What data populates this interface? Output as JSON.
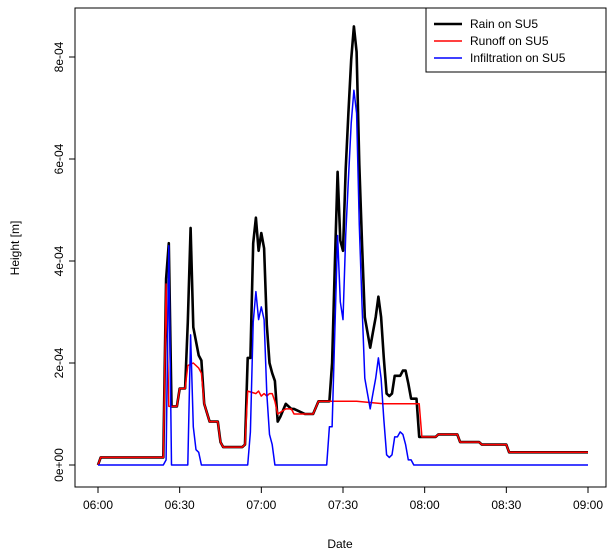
{
  "chart_data": {
    "type": "line",
    "xlabel": "Date",
    "ylabel": "Height [m]",
    "x_ticks": [
      "06:00",
      "06:30",
      "07:00",
      "07:30",
      "08:00",
      "08:30",
      "09:00"
    ],
    "y_ticks": [
      "0e+00",
      "2e-04",
      "4e-04",
      "6e-04",
      "8e-04"
    ],
    "xlim": [
      "06:00",
      "09:00"
    ],
    "ylim": [
      0,
      0.00087
    ],
    "legend_position": "top-right",
    "series": [
      {
        "name": "Rain on SU5",
        "color": "#000000",
        "points": [
          [
            "06:00",
            0.0
          ],
          [
            "06:01",
            1.5e-05
          ],
          [
            "06:24",
            1.5e-05
          ],
          [
            "06:25",
            0.000365
          ],
          [
            "06:26",
            0.000435
          ],
          [
            "06:27",
            0.000115
          ],
          [
            "06:29",
            0.000115
          ],
          [
            "06:30",
            0.00015
          ],
          [
            "06:32",
            0.00015
          ],
          [
            "06:33",
            0.00028
          ],
          [
            "06:34",
            0.000465
          ],
          [
            "06:35",
            0.00027
          ],
          [
            "06:37",
            0.000215
          ],
          [
            "06:38",
            0.000205
          ],
          [
            "06:39",
            0.00012
          ],
          [
            "06:41",
            8.5e-05
          ],
          [
            "06:44",
            8.5e-05
          ],
          [
            "06:45",
            4.5e-05
          ],
          [
            "06:46",
            3.5e-05
          ],
          [
            "06:53",
            3.5e-05
          ],
          [
            "06:54",
            4e-05
          ],
          [
            "06:55",
            0.00021
          ],
          [
            "06:56",
            0.00021
          ],
          [
            "06:57",
            0.000435
          ],
          [
            "06:58",
            0.000485
          ],
          [
            "06:59",
            0.00042
          ],
          [
            "07:00",
            0.000455
          ],
          [
            "07:01",
            0.000425
          ],
          [
            "07:02",
            0.000275
          ],
          [
            "07:03",
            0.0002
          ],
          [
            "07:04",
            0.00018
          ],
          [
            "07:05",
            0.000165
          ],
          [
            "07:06",
            8.5e-05
          ],
          [
            "07:07",
            9.5e-05
          ],
          [
            "07:09",
            0.00012
          ],
          [
            "07:11",
            0.00011
          ],
          [
            "07:12",
            0.00011
          ],
          [
            "07:16",
            0.0001
          ],
          [
            "07:19",
            0.0001
          ],
          [
            "07:21",
            0.000125
          ],
          [
            "07:25",
            0.000125
          ],
          [
            "07:26",
            0.0002
          ],
          [
            "07:27",
            0.00039
          ],
          [
            "07:28",
            0.000575
          ],
          [
            "07:29",
            0.00044
          ],
          [
            "07:30",
            0.00042
          ],
          [
            "07:31",
            0.00058
          ],
          [
            "07:32",
            0.00069
          ],
          [
            "07:33",
            0.000795
          ],
          [
            "07:34",
            0.00086
          ],
          [
            "07:35",
            0.00081
          ],
          [
            "07:36",
            0.00059
          ],
          [
            "07:37",
            0.00043
          ],
          [
            "07:38",
            0.00029
          ],
          [
            "07:39",
            0.00026
          ],
          [
            "07:40",
            0.00023
          ],
          [
            "07:41",
            0.00026
          ],
          [
            "07:42",
            0.00029
          ],
          [
            "07:43",
            0.00033
          ],
          [
            "07:44",
            0.00029
          ],
          [
            "07:45",
            0.00021
          ],
          [
            "07:46",
            0.00014
          ],
          [
            "07:47",
            0.000135
          ],
          [
            "07:48",
            0.00014
          ],
          [
            "07:49",
            0.000175
          ],
          [
            "07:51",
            0.000175
          ],
          [
            "07:52",
            0.000185
          ],
          [
            "07:53",
            0.000185
          ],
          [
            "07:54",
            0.00016
          ],
          [
            "07:55",
            0.00013
          ],
          [
            "07:57",
            0.00013
          ],
          [
            "07:58",
            5.5e-05
          ],
          [
            "08:04",
            5.5e-05
          ],
          [
            "08:05",
            6e-05
          ],
          [
            "08:12",
            6e-05
          ],
          [
            "08:13",
            4.5e-05
          ],
          [
            "08:20",
            4.5e-05
          ],
          [
            "08:21",
            4e-05
          ],
          [
            "08:30",
            4e-05
          ],
          [
            "08:31",
            2.5e-05
          ],
          [
            "09:00",
            2.5e-05
          ]
        ]
      },
      {
        "name": "Runoff on SU5",
        "color": "#ff0000",
        "points": [
          [
            "06:00",
            0.0
          ],
          [
            "06:01",
            1.5e-05
          ],
          [
            "06:24",
            1.5e-05
          ],
          [
            "06:25",
            0.000355
          ],
          [
            "06:26",
            0.000115
          ],
          [
            "06:29",
            0.000115
          ],
          [
            "06:30",
            0.00015
          ],
          [
            "06:32",
            0.00015
          ],
          [
            "06:33",
            0.000195
          ],
          [
            "06:35",
            0.0002
          ],
          [
            "06:37",
            0.00019
          ],
          [
            "06:38",
            0.00018
          ],
          [
            "06:39",
            0.00012
          ],
          [
            "06:41",
            8.5e-05
          ],
          [
            "06:44",
            8.5e-05
          ],
          [
            "06:45",
            4.5e-05
          ],
          [
            "06:46",
            3.5e-05
          ],
          [
            "06:53",
            3.5e-05
          ],
          [
            "06:54",
            4e-05
          ],
          [
            "06:55",
            0.000145
          ],
          [
            "06:58",
            0.00014
          ],
          [
            "06:59",
            0.000145
          ],
          [
            "07:00",
            0.000135
          ],
          [
            "07:01",
            0.00014
          ],
          [
            "07:02",
            0.000135
          ],
          [
            "07:03",
            0.00014
          ],
          [
            "07:04",
            0.00014
          ],
          [
            "07:05",
            0.000125
          ],
          [
            "07:06",
            0.0001
          ],
          [
            "07:09",
            0.00011
          ],
          [
            "07:11",
            0.00011
          ],
          [
            "07:12",
            0.0001
          ],
          [
            "07:19",
            0.0001
          ],
          [
            "07:21",
            0.000125
          ],
          [
            "07:35",
            0.000125
          ],
          [
            "07:45",
            0.00012
          ],
          [
            "07:58",
            0.00012
          ],
          [
            "07:59",
            5.5e-05
          ],
          [
            "08:04",
            5.5e-05
          ],
          [
            "08:05",
            6e-05
          ],
          [
            "08:12",
            6e-05
          ],
          [
            "08:13",
            4.5e-05
          ],
          [
            "08:20",
            4.5e-05
          ],
          [
            "08:21",
            4e-05
          ],
          [
            "08:30",
            4e-05
          ],
          [
            "08:31",
            2.5e-05
          ],
          [
            "09:00",
            2.5e-05
          ]
        ]
      },
      {
        "name": "Infiltration on SU5",
        "color": "#0000ff",
        "points": [
          [
            "06:00",
            0.0
          ],
          [
            "06:24",
            0.0
          ],
          [
            "06:25",
            1e-05
          ],
          [
            "06:26",
            0.00043
          ],
          [
            "06:27",
            0.0
          ],
          [
            "06:33",
            0.0
          ],
          [
            "06:34",
            0.000255
          ],
          [
            "06:35",
            7.5e-05
          ],
          [
            "06:36",
            3e-05
          ],
          [
            "06:37",
            2.5e-05
          ],
          [
            "06:38",
            0.0
          ],
          [
            "06:55",
            0.0
          ],
          [
            "06:56",
            6.5e-05
          ],
          [
            "06:57",
            0.00028
          ],
          [
            "06:58",
            0.00034
          ],
          [
            "06:59",
            0.000285
          ],
          [
            "07:00",
            0.00031
          ],
          [
            "07:01",
            0.000285
          ],
          [
            "07:02",
            0.00014
          ],
          [
            "07:03",
            6e-05
          ],
          [
            "07:04",
            4e-05
          ],
          [
            "07:05",
            0.0
          ],
          [
            "07:24",
            0.0
          ],
          [
            "07:25",
            7.5e-05
          ],
          [
            "07:26",
            7.5e-05
          ],
          [
            "07:27",
            0.00026
          ],
          [
            "07:28",
            0.00045
          ],
          [
            "07:29",
            0.00032
          ],
          [
            "07:30",
            0.000285
          ],
          [
            "07:31",
            0.00045
          ],
          [
            "07:32",
            0.00056
          ],
          [
            "07:33",
            0.00067
          ],
          [
            "07:34",
            0.000735
          ],
          [
            "07:35",
            0.00069
          ],
          [
            "07:36",
            0.00047
          ],
          [
            "07:37",
            0.00031
          ],
          [
            "07:38",
            0.00017
          ],
          [
            "07:39",
            0.00014
          ],
          [
            "07:40",
            0.00011
          ],
          [
            "07:41",
            0.00014
          ],
          [
            "07:42",
            0.00017
          ],
          [
            "07:43",
            0.00021
          ],
          [
            "07:44",
            0.00017
          ],
          [
            "07:45",
            9e-05
          ],
          [
            "07:46",
            2e-05
          ],
          [
            "07:47",
            1.5e-05
          ],
          [
            "07:48",
            2e-05
          ],
          [
            "07:49",
            5.5e-05
          ],
          [
            "07:50",
            5.5e-05
          ],
          [
            "07:51",
            6.5e-05
          ],
          [
            "07:52",
            6e-05
          ],
          [
            "07:53",
            4e-05
          ],
          [
            "07:54",
            1e-05
          ],
          [
            "07:55",
            1e-05
          ],
          [
            "07:56",
            0.0
          ],
          [
            "09:00",
            0.0
          ]
        ]
      }
    ]
  }
}
